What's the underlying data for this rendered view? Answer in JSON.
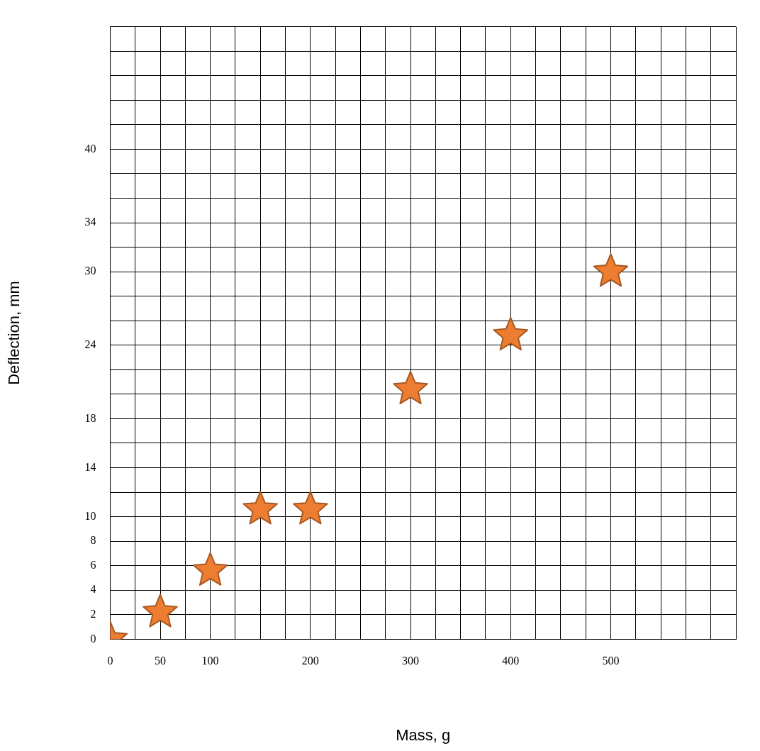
{
  "chart_data": {
    "type": "scatter",
    "xlabel": "Mass, g",
    "ylabel": "Deflection, mm",
    "x": [
      0,
      50,
      100,
      150,
      200,
      300,
      400,
      500
    ],
    "series": [
      {
        "color": "#ed7d31",
        "values": [
          0,
          2.2,
          5.6,
          10.6,
          10.6,
          20.4,
          24.8,
          30
        ]
      }
    ],
    "xlim": [
      0,
      625
    ],
    "xticks": [
      0,
      {
        "value": 25,
        "label": null
      },
      50,
      {
        "value": 75,
        "label": null
      },
      100,
      {
        "value": 125,
        "label": null
      },
      {
        "value": 150,
        "label": null
      },
      {
        "value": 175,
        "label": null
      },
      200,
      {
        "value": 225,
        "label": null
      },
      {
        "value": 250,
        "label": null
      },
      {
        "value": 275,
        "label": null
      },
      300,
      {
        "value": 325,
        "label": null
      },
      {
        "value": 350,
        "label": null
      },
      {
        "value": 375,
        "label": null
      },
      400,
      {
        "value": 425,
        "label": null
      },
      {
        "value": 450,
        "label": null
      },
      {
        "value": 475,
        "label": null
      },
      500,
      {
        "value": 525,
        "label": null
      },
      {
        "value": 550,
        "label": null
      },
      {
        "value": 575,
        "label": null
      },
      {
        "value": 600,
        "label": null
      },
      {
        "value": 625,
        "label": null
      }
    ],
    "ylim": [
      0,
      50
    ],
    "yticks": [
      0,
      2,
      4,
      6,
      8,
      10,
      {
        "value": 12,
        "label": null
      },
      14,
      {
        "value": 16,
        "label": null
      },
      18,
      {
        "value": 20,
        "label": null
      },
      {
        "value": 22,
        "label": null
      },
      24,
      {
        "value": 26,
        "label": null
      },
      {
        "value": 28,
        "label": null
      },
      30,
      {
        "value": 32,
        "label": null
      },
      34,
      {
        "value": 36,
        "label": null
      },
      {
        "value": 38,
        "label": null
      },
      40,
      {
        "value": 42,
        "label": null
      },
      {
        "value": 44,
        "label": null
      },
      {
        "value": 46,
        "label": null
      },
      {
        "value": 48,
        "label": null
      },
      {
        "value": 50,
        "label": null
      }
    ],
    "grid": true,
    "legend": false,
    "marker": "star"
  }
}
